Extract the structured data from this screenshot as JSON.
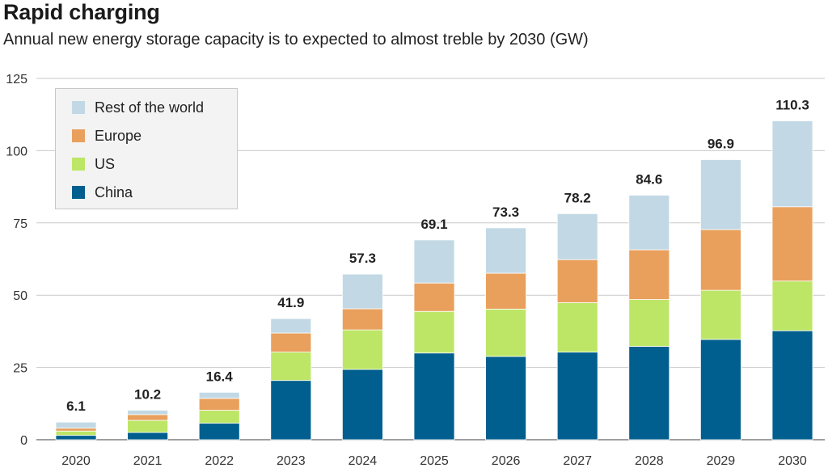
{
  "title": "Rapid charging",
  "subtitle": "Annual new energy storage capacity is to expected to almost treble by 2030 (GW)",
  "chart_data": {
    "type": "bar",
    "stacked": true,
    "categories": [
      "2020",
      "2021",
      "2022",
      "2023",
      "2024",
      "2025",
      "2026",
      "2027",
      "2028",
      "2029",
      "2030"
    ],
    "series": [
      {
        "name": "China",
        "color": "#005f8e",
        "values": [
          1.5,
          2.5,
          5.7,
          20.5,
          24.3,
          30.0,
          28.8,
          30.3,
          32.3,
          34.7,
          37.7
        ]
      },
      {
        "name": "US",
        "color": "#bde667",
        "values": [
          1.5,
          4.2,
          4.5,
          9.8,
          13.7,
          14.4,
          16.4,
          17.1,
          16.2,
          17.0,
          17.2
        ]
      },
      {
        "name": "Europe",
        "color": "#e9a05c",
        "values": [
          1.0,
          2.0,
          4.1,
          6.6,
          7.3,
          9.8,
          12.4,
          14.9,
          17.2,
          21.0,
          25.7
        ]
      },
      {
        "name": "Rest of the world",
        "color": "#c2d9e5",
        "values": [
          2.1,
          1.5,
          2.1,
          5.0,
          12.0,
          14.9,
          15.7,
          15.9,
          18.9,
          24.2,
          29.7
        ]
      }
    ],
    "totals": [
      6.1,
      10.2,
      16.4,
      41.9,
      57.3,
      69.1,
      73.3,
      78.2,
      84.6,
      96.9,
      110.3
    ],
    "total_labels": [
      "6.1",
      "10.2",
      "16.4",
      "41.9",
      "57.3",
      "69.1",
      "73.3",
      "78.2",
      "84.6",
      "96.9",
      "110.3"
    ],
    "yticks": [
      0,
      25,
      50,
      75,
      100,
      125
    ],
    "ylim": [
      0,
      125
    ],
    "grid": true,
    "legend_position": "top-left"
  },
  "legend": [
    {
      "label": "Rest of the world",
      "color": "#c2d9e5"
    },
    {
      "label": "Europe",
      "color": "#e9a05c"
    },
    {
      "label": "US",
      "color": "#bde667"
    },
    {
      "label": "China",
      "color": "#005f8e"
    }
  ]
}
